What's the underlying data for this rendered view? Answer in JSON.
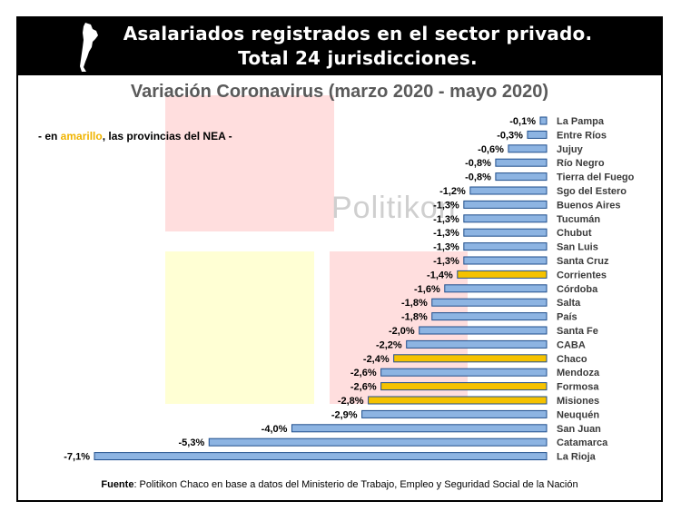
{
  "header": {
    "title_line1": "Asalariados registrados en el sector privado.",
    "title_line2": "Total 24 jurisdicciones."
  },
  "subtitle": "Variación Coronavirus (marzo 2020 - mayo 2020)",
  "note": {
    "prefix": "- en ",
    "highlight": "amarillo",
    "suffix": ", las provincias del NEA -"
  },
  "watermark": "Politikon",
  "source": {
    "label": "Fuente",
    "text": ": Politikon Chaco en base a datos del Ministerio de Trabajo, Empleo y Seguridad Social de la Nación"
  },
  "colors": {
    "default_bar": "#8db4e2",
    "nea_bar": "#f5c200",
    "bar_border": "#1f4e8c"
  },
  "chart_data": {
    "type": "bar",
    "orientation": "horizontal",
    "title": "Variación Coronavirus (marzo 2020 - mayo 2020)",
    "xlabel": "",
    "ylabel": "",
    "xlim": [
      -7.1,
      0
    ],
    "categories": [
      "La Pampa",
      "Entre Ríos",
      "Jujuy",
      "Río Negro",
      "Tierra del Fuego",
      "Sgo del Estero",
      "Buenos Aires",
      "Tucumán",
      "Chubut",
      "San Luis",
      "Santa Cruz",
      "Corrientes",
      "Córdoba",
      "Salta",
      "País",
      "Santa Fe",
      "CABA",
      "Chaco",
      "Mendoza",
      "Formosa",
      "Misiones",
      "Neuquén",
      "San Juan",
      "Catamarca",
      "La Rioja"
    ],
    "values": [
      -0.1,
      -0.3,
      -0.6,
      -0.8,
      -0.8,
      -1.2,
      -1.3,
      -1.3,
      -1.3,
      -1.3,
      -1.3,
      -1.4,
      -1.6,
      -1.8,
      -1.8,
      -2.0,
      -2.2,
      -2.4,
      -2.6,
      -2.6,
      -2.8,
      -2.9,
      -4.0,
      -5.3,
      -7.1
    ],
    "labels": [
      "-0,1%",
      "-0,3%",
      "-0,6%",
      "-0,8%",
      "-0,8%",
      "-1,2%",
      "-1,3%",
      "-1,3%",
      "-1,3%",
      "-1,3%",
      "-1,3%",
      "-1,4%",
      "-1,6%",
      "-1,8%",
      "-1,8%",
      "-2,0%",
      "-2,2%",
      "-2,4%",
      "-2,6%",
      "-2,6%",
      "-2,8%",
      "-2,9%",
      "-4,0%",
      "-5,3%",
      "-7,1%"
    ],
    "nea": [
      false,
      false,
      false,
      false,
      false,
      false,
      false,
      false,
      false,
      false,
      false,
      true,
      false,
      false,
      false,
      false,
      false,
      true,
      false,
      true,
      true,
      false,
      false,
      false,
      false
    ],
    "legend": "none"
  }
}
